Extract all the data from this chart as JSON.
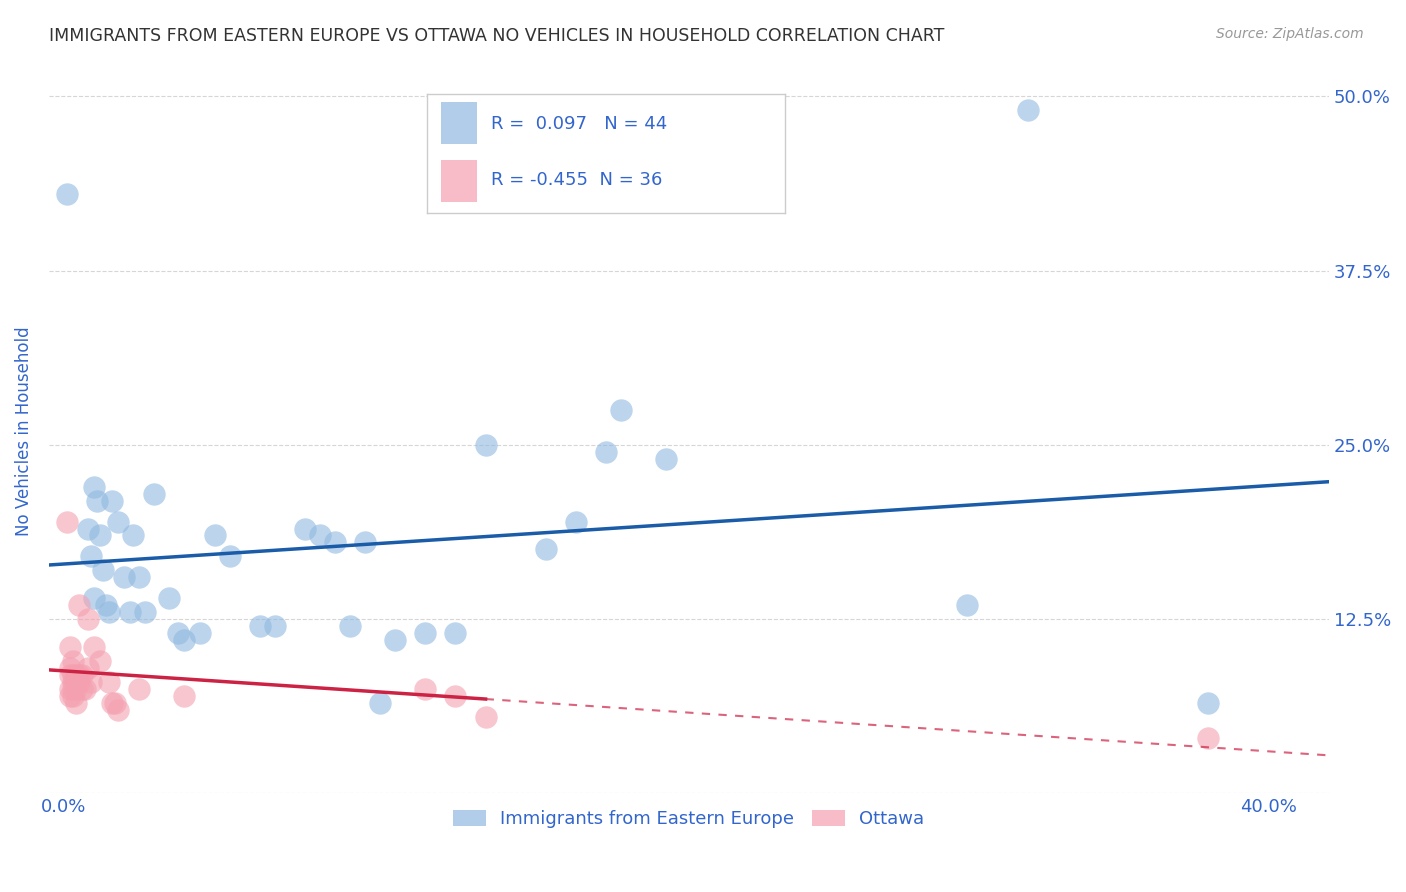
{
  "title": "IMMIGRANTS FROM EASTERN EUROPE VS OTTAWA NO VEHICLES IN HOUSEHOLD CORRELATION CHART",
  "source": "Source: ZipAtlas.com",
  "ylabel": "No Vehicles in Household",
  "ylim": [
    0.0,
    0.52
  ],
  "xlim": [
    -0.005,
    0.42
  ],
  "yticks": [
    0.0,
    0.125,
    0.25,
    0.375,
    0.5
  ],
  "ytick_labels": [
    "",
    "12.5%",
    "25.0%",
    "37.5%",
    "50.0%"
  ],
  "blue_R": 0.097,
  "blue_N": 44,
  "pink_R": -0.455,
  "pink_N": 36,
  "blue_color": "#90B8E0",
  "pink_color": "#F4A0B0",
  "line_blue": "#1A5CA8",
  "line_pink": "#CC2244",
  "legend_label_blue": "Immigrants from Eastern Europe",
  "legend_label_pink": "Ottawa",
  "blue_scatter": [
    [
      0.001,
      0.43
    ],
    [
      0.008,
      0.19
    ],
    [
      0.009,
      0.17
    ],
    [
      0.01,
      0.22
    ],
    [
      0.01,
      0.14
    ],
    [
      0.011,
      0.21
    ],
    [
      0.012,
      0.185
    ],
    [
      0.013,
      0.16
    ],
    [
      0.014,
      0.135
    ],
    [
      0.015,
      0.13
    ],
    [
      0.016,
      0.21
    ],
    [
      0.018,
      0.195
    ],
    [
      0.02,
      0.155
    ],
    [
      0.022,
      0.13
    ],
    [
      0.023,
      0.185
    ],
    [
      0.025,
      0.155
    ],
    [
      0.027,
      0.13
    ],
    [
      0.03,
      0.215
    ],
    [
      0.035,
      0.14
    ],
    [
      0.038,
      0.115
    ],
    [
      0.04,
      0.11
    ],
    [
      0.045,
      0.115
    ],
    [
      0.05,
      0.185
    ],
    [
      0.055,
      0.17
    ],
    [
      0.065,
      0.12
    ],
    [
      0.07,
      0.12
    ],
    [
      0.08,
      0.19
    ],
    [
      0.085,
      0.185
    ],
    [
      0.09,
      0.18
    ],
    [
      0.095,
      0.12
    ],
    [
      0.1,
      0.18
    ],
    [
      0.105,
      0.065
    ],
    [
      0.11,
      0.11
    ],
    [
      0.12,
      0.115
    ],
    [
      0.13,
      0.115
    ],
    [
      0.14,
      0.25
    ],
    [
      0.16,
      0.175
    ],
    [
      0.17,
      0.195
    ],
    [
      0.18,
      0.245
    ],
    [
      0.185,
      0.275
    ],
    [
      0.2,
      0.24
    ],
    [
      0.3,
      0.135
    ],
    [
      0.32,
      0.49
    ],
    [
      0.38,
      0.065
    ]
  ],
  "pink_scatter": [
    [
      0.001,
      0.195
    ],
    [
      0.002,
      0.105
    ],
    [
      0.002,
      0.09
    ],
    [
      0.002,
      0.085
    ],
    [
      0.002,
      0.075
    ],
    [
      0.002,
      0.07
    ],
    [
      0.003,
      0.095
    ],
    [
      0.003,
      0.085
    ],
    [
      0.003,
      0.08
    ],
    [
      0.003,
      0.075
    ],
    [
      0.003,
      0.07
    ],
    [
      0.004,
      0.085
    ],
    [
      0.004,
      0.08
    ],
    [
      0.004,
      0.075
    ],
    [
      0.004,
      0.065
    ],
    [
      0.005,
      0.135
    ],
    [
      0.005,
      0.085
    ],
    [
      0.005,
      0.08
    ],
    [
      0.006,
      0.085
    ],
    [
      0.006,
      0.075
    ],
    [
      0.007,
      0.075
    ],
    [
      0.008,
      0.125
    ],
    [
      0.008,
      0.09
    ],
    [
      0.009,
      0.08
    ],
    [
      0.01,
      0.105
    ],
    [
      0.012,
      0.095
    ],
    [
      0.015,
      0.08
    ],
    [
      0.016,
      0.065
    ],
    [
      0.017,
      0.065
    ],
    [
      0.018,
      0.06
    ],
    [
      0.025,
      0.075
    ],
    [
      0.04,
      0.07
    ],
    [
      0.12,
      0.075
    ],
    [
      0.13,
      0.07
    ],
    [
      0.14,
      0.055
    ],
    [
      0.38,
      0.04
    ]
  ],
  "background_color": "#FFFFFF",
  "grid_color": "#CCCCCC",
  "title_color": "#333333",
  "axis_color": "#3366CC",
  "pink_line_solid_end": 0.14,
  "pink_line_dash_start": 0.14
}
